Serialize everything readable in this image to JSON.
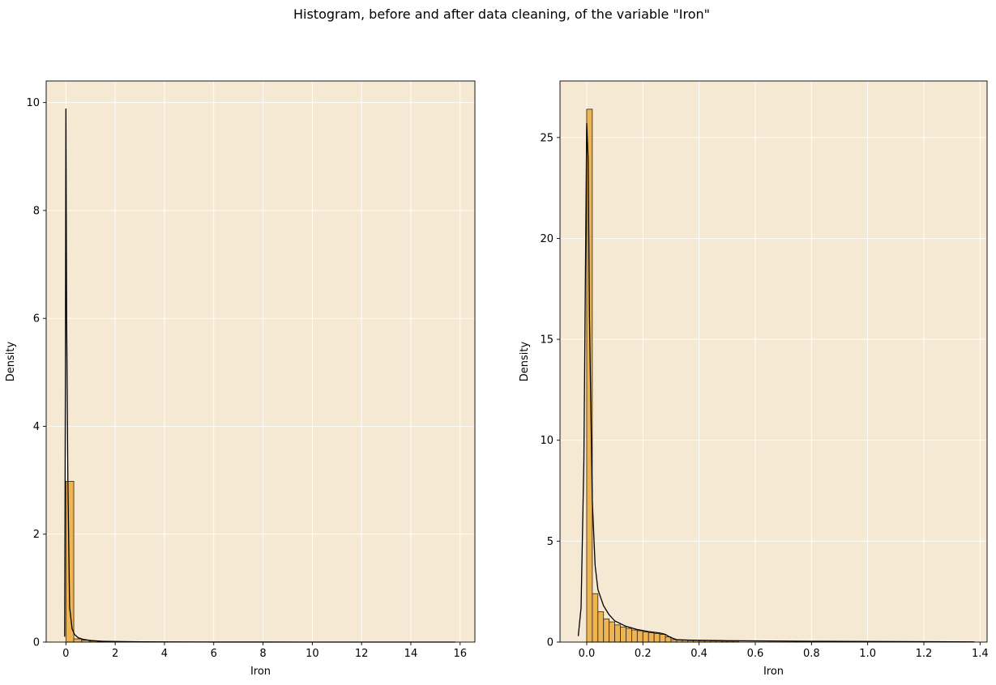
{
  "figure": {
    "suptitle": "Histogram, before and after data cleaning, of the variable \"Iron\""
  },
  "colors": {
    "axes_bg": "#f5e9d4",
    "grid": "#ffffff",
    "bar_fill": "#eeb452",
    "bar_edge": "#2b2418",
    "kde_line": "#000000"
  },
  "chart_data": [
    {
      "type": "bar",
      "title": "",
      "xlabel": "Iron",
      "ylabel": "Density",
      "xlim": [
        -0.8,
        16.6
      ],
      "ylim": [
        0,
        10.4
      ],
      "xticks": [
        0,
        2,
        4,
        6,
        8,
        10,
        12,
        14,
        16
      ],
      "yticks": [
        0,
        2,
        4,
        6,
        8,
        10
      ],
      "grid": true,
      "histogram": {
        "bin_edges": [
          0.0,
          0.32,
          0.64,
          0.96,
          1.28,
          1.6,
          1.92,
          2.24,
          2.56
        ],
        "densities": [
          2.98,
          0.06,
          0.035,
          0.02,
          0.012,
          0.008,
          0.006,
          0.005
        ]
      },
      "kde": {
        "x": [
          -0.05,
          -0.02,
          0.0,
          0.03,
          0.08,
          0.15,
          0.25,
          0.35,
          0.5,
          0.7,
          1.0,
          1.5,
          2.0,
          3.0,
          4.0,
          6.0,
          8.0,
          10.0,
          12.0,
          14.0,
          15.8
        ],
        "y": [
          0.1,
          5.0,
          9.88,
          6.0,
          3.0,
          0.65,
          0.25,
          0.14,
          0.08,
          0.05,
          0.03,
          0.015,
          0.01,
          0.005,
          0.003,
          0.001,
          0.001,
          0.0,
          0.0,
          0.0,
          0.0
        ]
      }
    },
    {
      "type": "bar",
      "title": "",
      "xlabel": "Iron",
      "ylabel": "Density",
      "xlim": [
        -0.095,
        1.425
      ],
      "ylim": [
        0,
        27.8
      ],
      "xticks": [
        0.0,
        0.2,
        0.4,
        0.6,
        0.8,
        1.0,
        1.2,
        1.4
      ],
      "xtick_labels": [
        "0.0",
        "0.2",
        "0.4",
        "0.6",
        "0.8",
        "1.0",
        "1.2",
        "1.4"
      ],
      "yticks": [
        0,
        5,
        10,
        15,
        20,
        25
      ],
      "grid": true,
      "histogram": {
        "bin_edges": [
          0.0,
          0.02,
          0.04,
          0.06,
          0.08,
          0.1,
          0.12,
          0.14,
          0.16,
          0.18,
          0.2,
          0.22,
          0.24,
          0.26,
          0.28,
          0.3,
          0.32,
          0.34,
          0.36,
          0.38,
          0.4,
          0.42,
          0.44,
          0.46,
          0.48,
          0.5,
          0.52,
          0.54
        ],
        "densities": [
          26.4,
          2.4,
          1.5,
          1.15,
          1.0,
          0.85,
          0.75,
          0.68,
          0.6,
          0.56,
          0.5,
          0.46,
          0.42,
          0.38,
          0.26,
          0.12,
          0.1,
          0.09,
          0.08,
          0.08,
          0.07,
          0.07,
          0.06,
          0.06,
          0.05,
          0.05,
          0.05
        ]
      },
      "kde": {
        "x": [
          -0.03,
          -0.02,
          -0.01,
          0.0,
          0.005,
          0.01,
          0.02,
          0.03,
          0.04,
          0.06,
          0.08,
          0.1,
          0.14,
          0.18,
          0.22,
          0.26,
          0.28,
          0.3,
          0.32,
          0.36,
          0.4,
          0.5,
          0.6,
          0.8,
          1.0,
          1.2,
          1.38
        ],
        "y": [
          0.3,
          1.7,
          9.0,
          25.7,
          24.0,
          16.0,
          7.0,
          3.8,
          2.6,
          1.8,
          1.35,
          1.05,
          0.78,
          0.62,
          0.52,
          0.45,
          0.38,
          0.22,
          0.12,
          0.1,
          0.09,
          0.07,
          0.06,
          0.04,
          0.03,
          0.02,
          0.01
        ]
      }
    }
  ]
}
